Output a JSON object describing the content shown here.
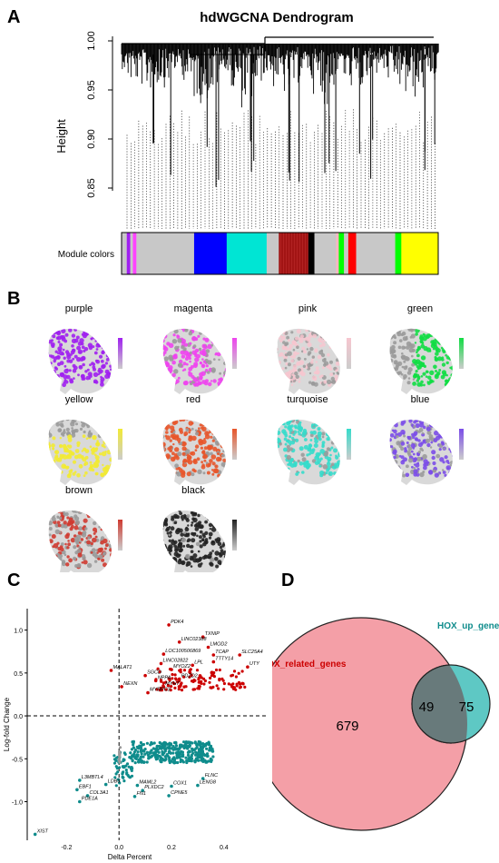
{
  "panels": {
    "a": "A",
    "b": "B",
    "c": "C",
    "d": "D"
  },
  "dendrogram": {
    "title": "hdWGCNA Dendrogram",
    "ylabel": "Height",
    "yticks": [
      "1.00",
      "0.95",
      "0.90",
      "0.85"
    ],
    "module_label": "Module colors",
    "module_strip": [
      [
        "#c8c8c8",
        0.012
      ],
      [
        "#a020f0",
        0.008
      ],
      [
        "#c8c8c8",
        0.006
      ],
      [
        "#ff44ff",
        0.008
      ],
      [
        "#c8c8c8",
        0.133
      ],
      [
        "#0000ff",
        0.075
      ],
      [
        "#00e5d4",
        0.092
      ],
      [
        "#c8c8c8",
        0.028
      ],
      [
        "#b22222",
        0.068
      ],
      [
        "#000000",
        0.014
      ],
      [
        "#c8c8c8",
        0.05
      ],
      [
        "#ffb6c1",
        0.006
      ],
      [
        "#00ff00",
        0.012
      ],
      [
        "#c8c8c8",
        0.01
      ],
      [
        "#ff0000",
        0.018
      ],
      [
        "#c8c8c8",
        0.09
      ],
      [
        "#00ff00",
        0.014
      ],
      [
        "#ffff00",
        0.085
      ]
    ]
  },
  "modules": [
    {
      "name": "purple",
      "color": "#a020f0"
    },
    {
      "name": "magenta",
      "color": "#ee44ee"
    },
    {
      "name": "pink",
      "color": "#f7c6cf"
    },
    {
      "name": "green",
      "color": "#11dd44"
    },
    {
      "name": "yellow",
      "color": "#f2ea33"
    },
    {
      "name": "red",
      "color": "#e8552a"
    },
    {
      "name": "turquoise",
      "color": "#35dccb"
    },
    {
      "name": "blue",
      "color": "#7b4de8"
    },
    {
      "name": "brown",
      "color": "#cf3a30"
    },
    {
      "name": "black",
      "color": "#222222"
    }
  ],
  "volcano": {
    "xlabel": "Delta Percent",
    "ylabel": "Log-fold Change",
    "xticks": [
      "-0.2",
      "0.0",
      "0.2",
      "0.4"
    ],
    "yticks": [
      "1.0",
      "0.5",
      "0.0",
      "-0.5",
      "-1.0"
    ],
    "up_color": "#cc0000",
    "down_color": "#0f8c8c",
    "labels": [
      {
        "text": "PDK4",
        "x": 0.19,
        "y": 1.06
      },
      {
        "text": "TXNIP",
        "x": 0.32,
        "y": 0.92
      },
      {
        "text": "LINC02388",
        "x": 0.23,
        "y": 0.86
      },
      {
        "text": "LMOD2",
        "x": 0.34,
        "y": 0.8
      },
      {
        "text": "LOC100506869",
        "x": 0.17,
        "y": 0.72
      },
      {
        "text": "TCAP",
        "x": 0.36,
        "y": 0.71
      },
      {
        "text": "SLC25A4",
        "x": 0.46,
        "y": 0.71
      },
      {
        "text": "TTTY14",
        "x": 0.36,
        "y": 0.63
      },
      {
        "text": "LINC02822",
        "x": 0.16,
        "y": 0.61
      },
      {
        "text": "LPL",
        "x": 0.28,
        "y": 0.59
      },
      {
        "text": "UTY",
        "x": 0.49,
        "y": 0.57
      },
      {
        "text": "MYOZ2",
        "x": 0.2,
        "y": 0.54
      },
      {
        "text": "MALAT1",
        "x": -0.03,
        "y": 0.53
      },
      {
        "text": "SGCD",
        "x": 0.1,
        "y": 0.47
      },
      {
        "text": "NPPA",
        "x": 0.14,
        "y": 0.41
      },
      {
        "text": "PDZD2",
        "x": 0.23,
        "y": 0.43
      },
      {
        "text": "NEXN",
        "x": 0.01,
        "y": 0.34
      },
      {
        "text": "MYH7",
        "x": 0.17,
        "y": 0.34
      },
      {
        "text": "MYBPC3",
        "x": 0.11,
        "y": 0.27
      },
      {
        "text": "FLNC",
        "x": 0.32,
        "y": -0.73
      },
      {
        "text": "L3MBTL4",
        "x": -0.15,
        "y": -0.75
      },
      {
        "text": "LDB3",
        "x": -0.05,
        "y": -0.8
      },
      {
        "text": "MAML2",
        "x": 0.07,
        "y": -0.81
      },
      {
        "text": "COX1",
        "x": 0.2,
        "y": -0.82
      },
      {
        "text": "LENG8",
        "x": 0.3,
        "y": -0.81
      },
      {
        "text": "PLXDC2",
        "x": 0.09,
        "y": -0.87
      },
      {
        "text": "EBF1",
        "x": -0.16,
        "y": -0.86
      },
      {
        "text": "COL3A1",
        "x": -0.12,
        "y": -0.93
      },
      {
        "text": "CPNE5",
        "x": 0.19,
        "y": -0.93
      },
      {
        "text": "FN1",
        "x": 0.06,
        "y": -0.94
      },
      {
        "text": "PDE1A",
        "x": -0.15,
        "y": -1.0
      },
      {
        "text": "XIST",
        "x": -0.32,
        "y": -1.38
      }
    ]
  },
  "venn": {
    "set_a": {
      "label": "HOX_related_genes",
      "count": "679",
      "color": "#f49fa7",
      "label_color": "#cc0000"
    },
    "set_b": {
      "label": "HOX_up_genes",
      "count": "75",
      "color": "#5ec8c4",
      "label_color": "#0f8c8c"
    },
    "overlap": {
      "count": "49",
      "color": "#687a7b"
    }
  }
}
